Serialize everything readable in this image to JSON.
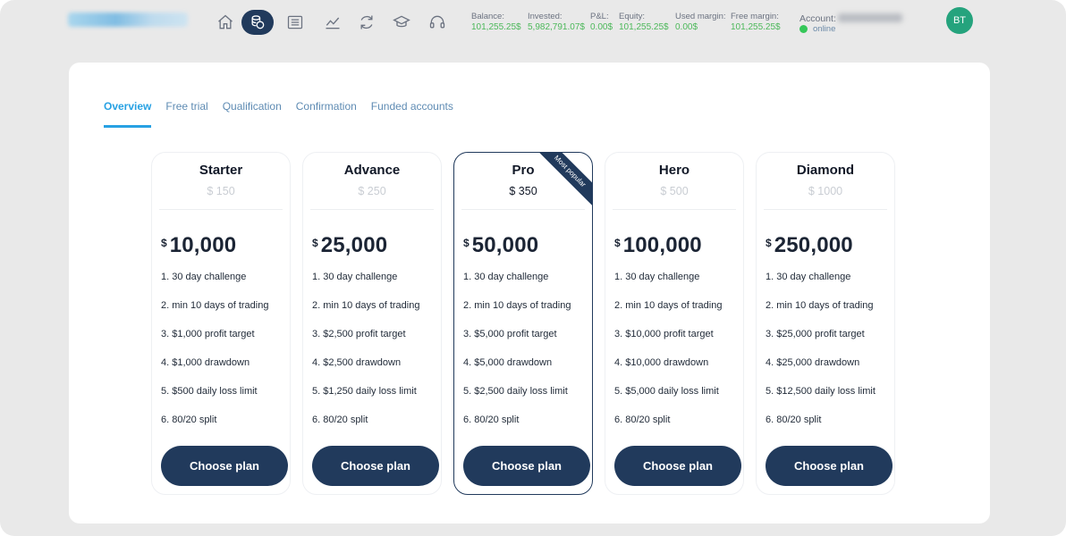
{
  "header": {
    "nav_icons": [
      "home-icon",
      "coins-icon",
      "list-icon",
      "chart-icon",
      "refresh-icon",
      "graduation-cap-icon",
      "headset-icon"
    ],
    "stats": [
      {
        "label": "Balance:",
        "value": "101,255.25$"
      },
      {
        "label": "Invested:",
        "value": "5,982,791.07$"
      },
      {
        "label": "P&L:",
        "value": "0.00$"
      },
      {
        "label": "Equity:",
        "value": "101,255.25$"
      },
      {
        "label": "Used margin:",
        "value": "0.00$"
      },
      {
        "label": "Free margin:",
        "value": "101,255.25$"
      }
    ],
    "account_label": "Account:",
    "status": "online",
    "avatar_initials": "BT"
  },
  "tabs": [
    "Overview",
    "Free trial",
    "Qualification",
    "Confirmation",
    "Funded accounts"
  ],
  "plans": [
    {
      "name": "Starter",
      "fee": "$ 150",
      "currency": "$",
      "amount": "10,000",
      "features": [
        "1. 30 day challenge",
        "2. min 10 days of trading",
        "3. $1,000 profit target",
        "4. $1,000 drawdown",
        "5. $500 daily loss limit",
        "6. 80/20 split"
      ],
      "button": "Choose plan"
    },
    {
      "name": "Advance",
      "fee": "$ 250",
      "currency": "$",
      "amount": "25,000",
      "features": [
        "1. 30 day challenge",
        "2. min 10 days of trading",
        "3. $2,500 profit target",
        "4. $2,500 drawdown",
        "5. $1,250 daily loss limit",
        "6. 80/20 split"
      ],
      "button": "Choose plan"
    },
    {
      "name": "Pro",
      "fee": "$ 350",
      "currency": "$",
      "amount": "50,000",
      "ribbon": "Most popular",
      "features": [
        "1. 30 day challenge",
        "2. min 10 days of trading",
        "3. $5,000 profit target",
        "4. $5,000 drawdown",
        "5. $2,500 daily loss limit",
        "6. 80/20 split"
      ],
      "button": "Choose plan"
    },
    {
      "name": "Hero",
      "fee": "$ 500",
      "currency": "$",
      "amount": "100,000",
      "features": [
        "1. 30 day challenge",
        "2. min 10 days of trading",
        "3. $10,000 profit target",
        "4. $10,000 drawdown",
        "5. $5,000 daily loss limit",
        "6. 80/20 split"
      ],
      "button": "Choose plan"
    },
    {
      "name": "Diamond",
      "fee": "$ 1000",
      "currency": "$",
      "amount": "250,000",
      "features": [
        "1. 30 day challenge",
        "2. min 10 days of trading",
        "3. $25,000 profit target",
        "4. $25,000 drawdown",
        "5. $12,500 daily loss limit",
        "6. 80/20 split"
      ],
      "button": "Choose plan"
    }
  ],
  "colors": {
    "accent": "#27a1e3",
    "primary": "#213a5c",
    "positive": "#4cb85a",
    "online": "#35c759",
    "avatar": "#25a37d"
  }
}
